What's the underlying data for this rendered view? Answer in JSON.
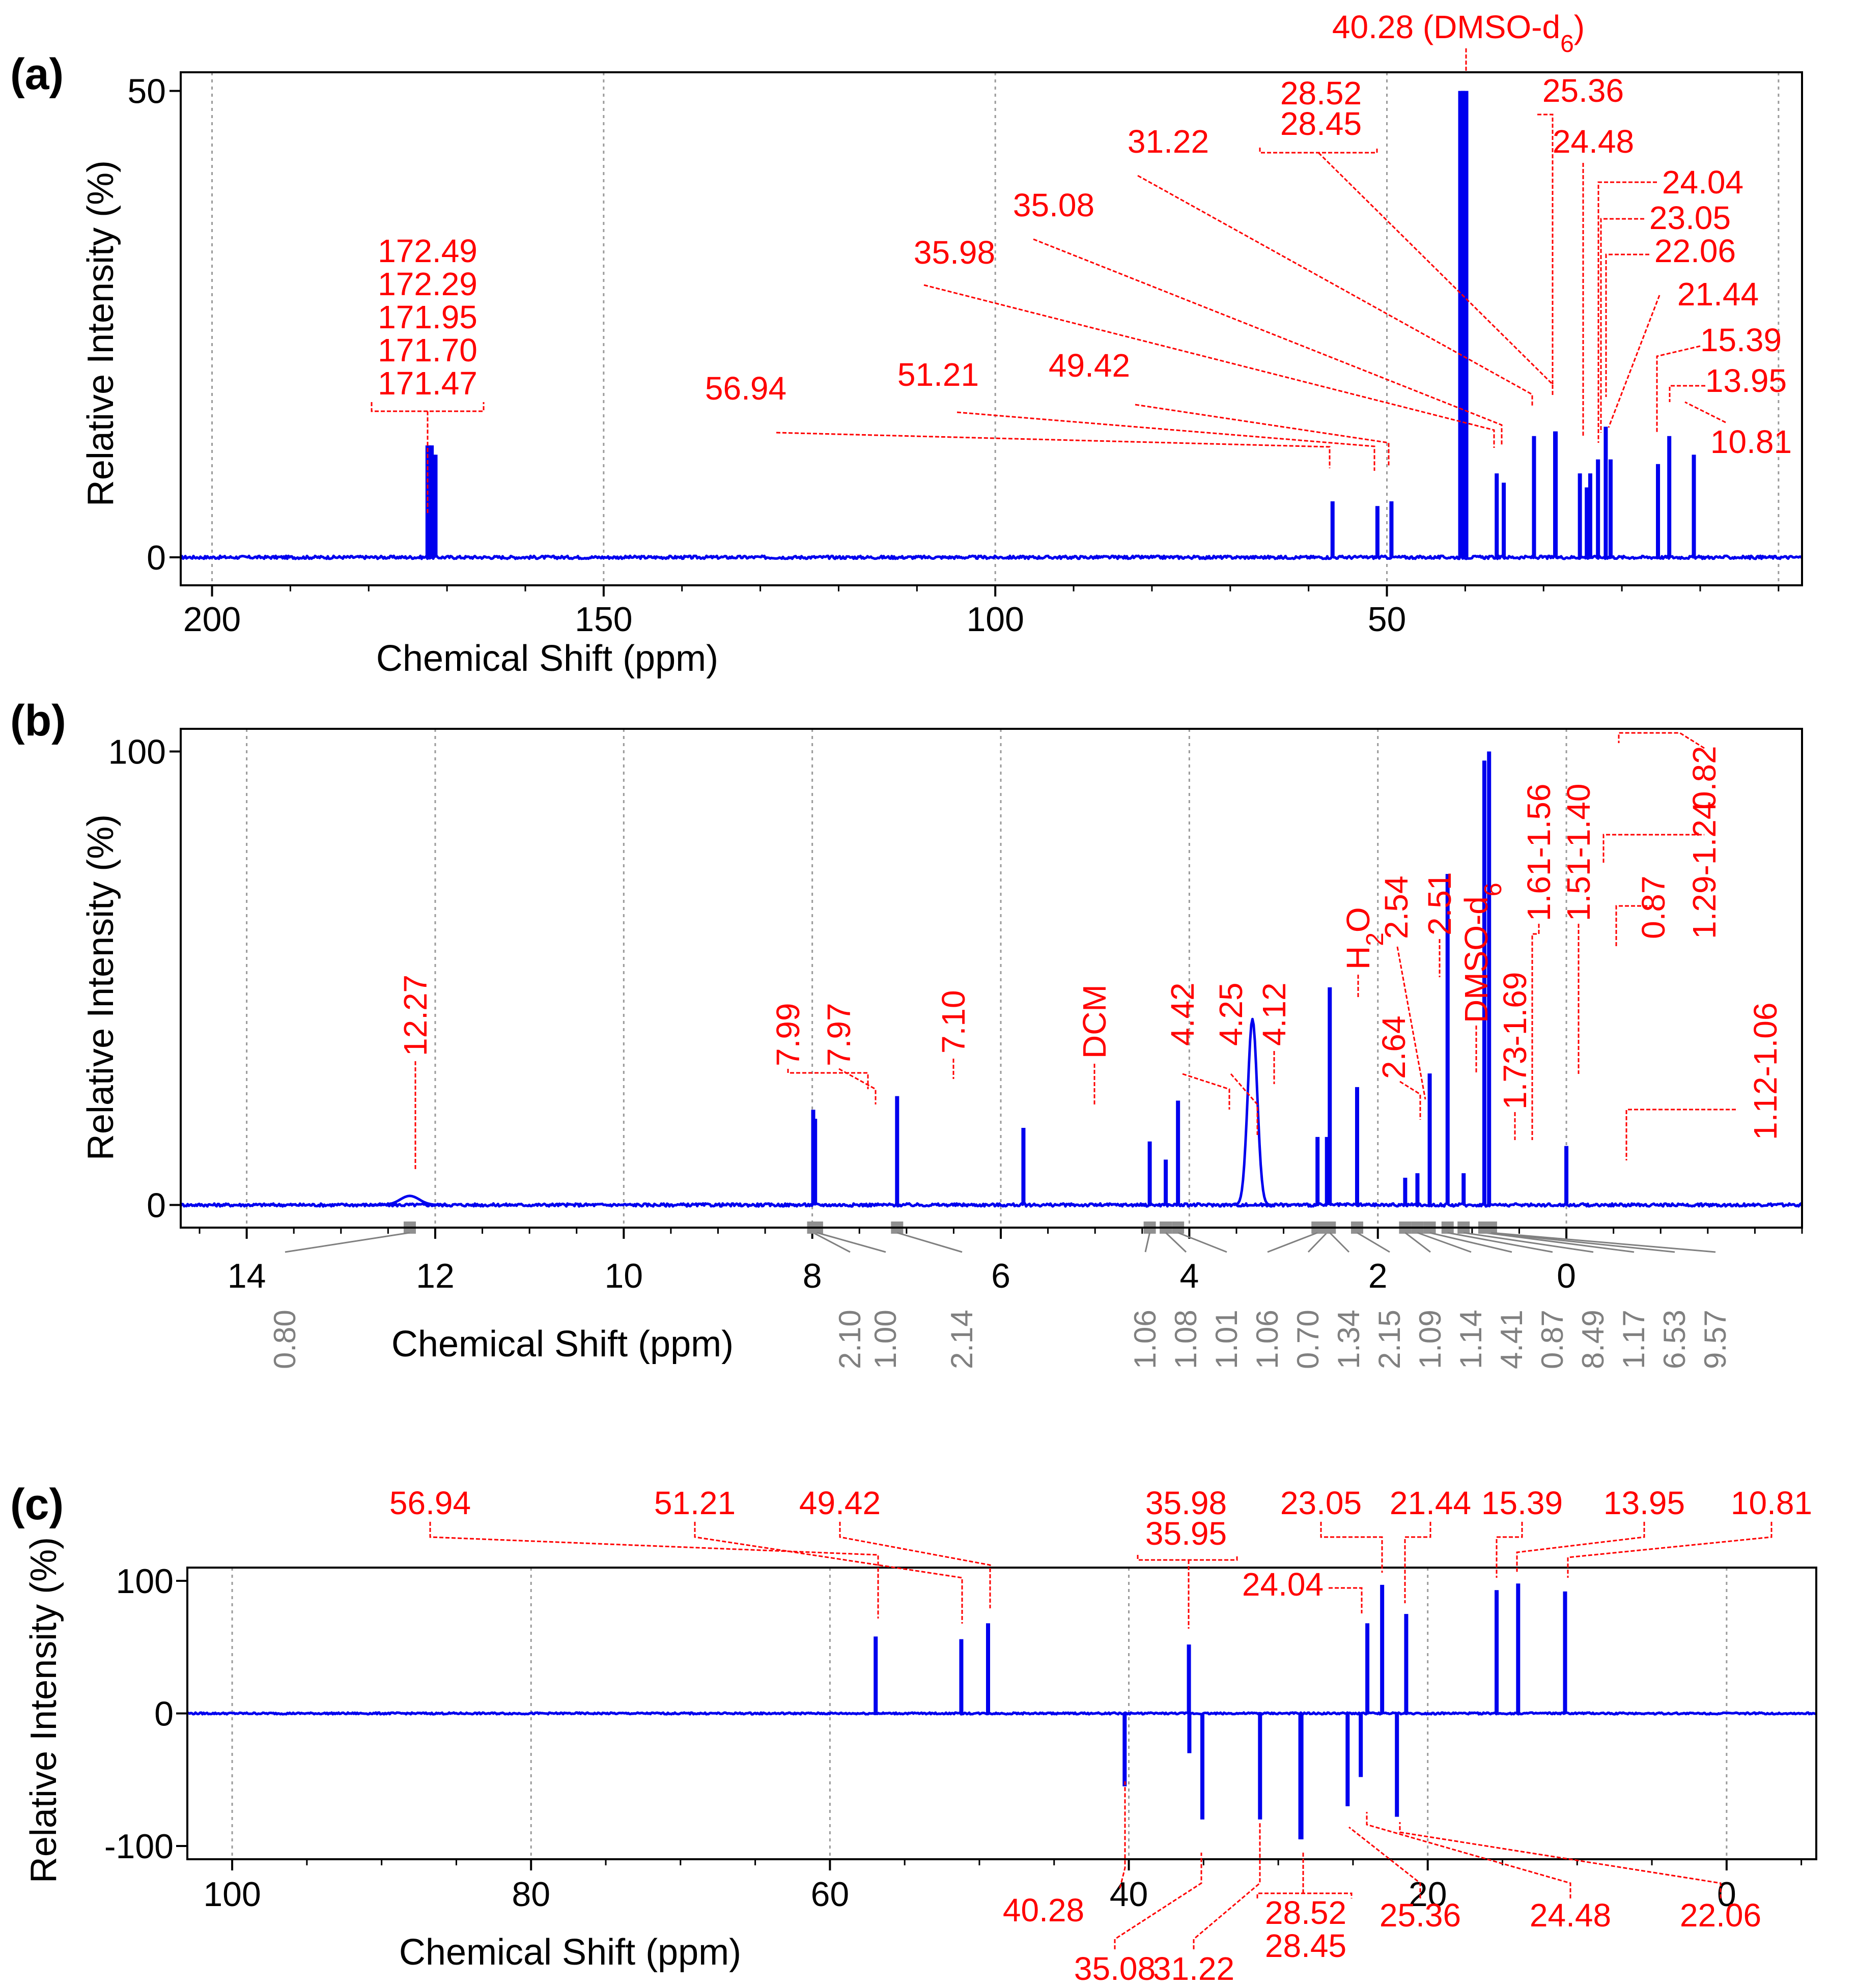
{
  "colors": {
    "spectrum": "#0000ee",
    "label": "#ff0000",
    "integral": "#808080",
    "grid": "#9a9a9a"
  },
  "chart_data": [
    {
      "panel": "(a)",
      "type": "line",
      "xlabel": "Chemical Shift (ppm)",
      "ylabel": "Relative Intensity (%)",
      "xlim": [
        204,
        -3
      ],
      "ylim": [
        -3,
        52
      ],
      "xticks": [
        "200",
        "150",
        "100",
        "50"
      ],
      "yticks": [
        "0",
        "50"
      ],
      "peaks": [
        {
          "x": 172.49,
          "y": 12
        },
        {
          "x": 172.29,
          "y": 12
        },
        {
          "x": 171.95,
          "y": 12
        },
        {
          "x": 171.7,
          "y": 11
        },
        {
          "x": 171.47,
          "y": 11
        },
        {
          "x": 56.94,
          "y": 6
        },
        {
          "x": 51.21,
          "y": 5.5
        },
        {
          "x": 49.42,
          "y": 6
        },
        {
          "x": 40.28,
          "y": 50
        },
        {
          "x": 35.98,
          "y": 9
        },
        {
          "x": 35.08,
          "y": 8
        },
        {
          "x": 31.22,
          "y": 13
        },
        {
          "x": 28.52,
          "y": 13.5
        },
        {
          "x": 28.45,
          "y": 13.5
        },
        {
          "x": 25.36,
          "y": 9
        },
        {
          "x": 24.48,
          "y": 7.5
        },
        {
          "x": 24.04,
          "y": 9
        },
        {
          "x": 23.05,
          "y": 10.5
        },
        {
          "x": 22.06,
          "y": 14
        },
        {
          "x": 21.44,
          "y": 10.5
        },
        {
          "x": 15.39,
          "y": 10
        },
        {
          "x": 13.95,
          "y": 13
        },
        {
          "x": 10.81,
          "y": 11
        }
      ],
      "labels": [
        {
          "text": "172.49"
        },
        {
          "text": "172.29"
        },
        {
          "text": "171.95"
        },
        {
          "text": "171.70"
        },
        {
          "text": "171.47"
        },
        {
          "text": "56.94"
        },
        {
          "text": "51.21"
        },
        {
          "text": "49.42"
        },
        {
          "text": "35.98"
        },
        {
          "text": "35.08"
        },
        {
          "text": "31.22"
        },
        {
          "text": "28.52"
        },
        {
          "text": "28.45"
        },
        {
          "text": "40.28 (DMSO-d"
        },
        {
          "text": "25.36"
        },
        {
          "text": "24.48"
        },
        {
          "text": "24.04"
        },
        {
          "text": "23.05"
        },
        {
          "text": "22.06"
        },
        {
          "text": "21.44"
        },
        {
          "text": "15.39"
        },
        {
          "text": "13.95"
        },
        {
          "text": "10.81"
        }
      ],
      "label_subscript": "6"
    },
    {
      "panel": "(b)",
      "type": "line",
      "xlabel": "Chemical Shift (ppm)",
      "ylabel": "Relative Intensity (%)",
      "xlim": [
        14.7,
        -2.5
      ],
      "ylim": [
        -5,
        105
      ],
      "xticks": [
        "14",
        "12",
        "10",
        "8",
        "6",
        "4",
        "2",
        "0"
      ],
      "yticks": [
        "0",
        "100"
      ],
      "peaks": [
        {
          "x": 12.27,
          "y": 2,
          "w": 0.1
        },
        {
          "x": 7.99,
          "y": 21
        },
        {
          "x": 7.97,
          "y": 19
        },
        {
          "x": 7.1,
          "y": 24
        },
        {
          "x": 5.76,
          "y": 17
        },
        {
          "x": 4.42,
          "y": 14
        },
        {
          "x": 4.25,
          "y": 10
        },
        {
          "x": 4.12,
          "y": 23
        },
        {
          "x": 3.33,
          "y": 41,
          "w": 0.05
        },
        {
          "x": 2.64,
          "y": 15
        },
        {
          "x": 2.54,
          "y": 15
        },
        {
          "x": 2.51,
          "y": 48
        },
        {
          "x": 2.22,
          "y": 26
        },
        {
          "x": 1.71,
          "y": 6
        },
        {
          "x": 1.58,
          "y": 7
        },
        {
          "x": 1.45,
          "y": 29
        },
        {
          "x": 1.26,
          "y": 73
        },
        {
          "x": 1.09,
          "y": 7
        },
        {
          "x": 0.87,
          "y": 98
        },
        {
          "x": 0.82,
          "y": 100
        },
        {
          "x": 0.0,
          "y": 13
        }
      ],
      "labels": [
        {
          "text": "12.27"
        },
        {
          "text": "7.99"
        },
        {
          "text": "7.97"
        },
        {
          "text": "7.10"
        },
        {
          "text": "DCM"
        },
        {
          "text": "4.42"
        },
        {
          "text": "4.25"
        },
        {
          "text": "4.12"
        },
        {
          "text": "H"
        },
        {
          "text": "2.64"
        },
        {
          "text": "2.54"
        },
        {
          "text": "2.51"
        },
        {
          "text": "DMSO-d"
        },
        {
          "text": "1.73-1.69"
        },
        {
          "text": "1.61-1.56"
        },
        {
          "text": "1.51-1.40"
        },
        {
          "text": "1.29-1.24"
        },
        {
          "text": "0.87"
        },
        {
          "text": "0.82"
        },
        {
          "text": "1.12-1.06"
        }
      ],
      "h2o_sub": "2",
      "h2o_tail": "O",
      "dmso_sub": "6",
      "integrals": [
        {
          "value": "0.80"
        },
        {
          "value": "2.10"
        },
        {
          "value": "1.00"
        },
        {
          "value": "2.14"
        },
        {
          "value": "1.06"
        },
        {
          "value": "1.08"
        },
        {
          "value": "1.01"
        },
        {
          "value": "1.06"
        },
        {
          "value": "0.70"
        },
        {
          "value": "1.34"
        },
        {
          "value": "2.15"
        },
        {
          "value": "1.09"
        },
        {
          "value": "1.14"
        },
        {
          "value": "4.41"
        },
        {
          "value": "0.87"
        },
        {
          "value": "8.49"
        },
        {
          "value": "1.17"
        },
        {
          "value": "6.53"
        },
        {
          "value": "9.57"
        }
      ]
    },
    {
      "panel": "(c)",
      "type": "line",
      "xlabel": "Chemical Shift (ppm)",
      "ylabel": "Relative Intensity (%)",
      "xlim": [
        103,
        -6
      ],
      "ylim": [
        -110,
        110
      ],
      "xticks": [
        "100",
        "80",
        "60",
        "40",
        "20",
        "0"
      ],
      "yticks": [
        "100",
        "0",
        "-100"
      ],
      "peaks": [
        {
          "x": 56.94,
          "y": 58
        },
        {
          "x": 51.21,
          "y": 56
        },
        {
          "x": 49.42,
          "y": 68
        },
        {
          "x": 40.28,
          "y": -55
        },
        {
          "x": 35.98,
          "y": 52
        },
        {
          "x": 35.95,
          "y": -30
        },
        {
          "x": 35.08,
          "y": -80
        },
        {
          "x": 31.22,
          "y": -80
        },
        {
          "x": 28.52,
          "y": -95
        },
        {
          "x": 28.45,
          "y": -95
        },
        {
          "x": 25.36,
          "y": -70
        },
        {
          "x": 24.48,
          "y": -48
        },
        {
          "x": 24.04,
          "y": 68
        },
        {
          "x": 23.05,
          "y": 97
        },
        {
          "x": 22.06,
          "y": -78
        },
        {
          "x": 21.44,
          "y": 75
        },
        {
          "x": 15.39,
          "y": 93
        },
        {
          "x": 13.95,
          "y": 98
        },
        {
          "x": 10.81,
          "y": 92
        }
      ],
      "labels": [
        {
          "text": "56.94"
        },
        {
          "text": "51.21"
        },
        {
          "text": "49.42"
        },
        {
          "text": "35.98"
        },
        {
          "text": "35.95"
        },
        {
          "text": "23.05"
        },
        {
          "text": "21.44"
        },
        {
          "text": "15.39"
        },
        {
          "text": "13.95"
        },
        {
          "text": "10.81"
        },
        {
          "text": "24.04"
        },
        {
          "text": "40.28"
        },
        {
          "text": "35.08"
        },
        {
          "text": "31.22"
        },
        {
          "text": "28.52"
        },
        {
          "text": "28.45"
        },
        {
          "text": "25.36"
        },
        {
          "text": "24.48"
        },
        {
          "text": "22.06"
        }
      ]
    }
  ]
}
